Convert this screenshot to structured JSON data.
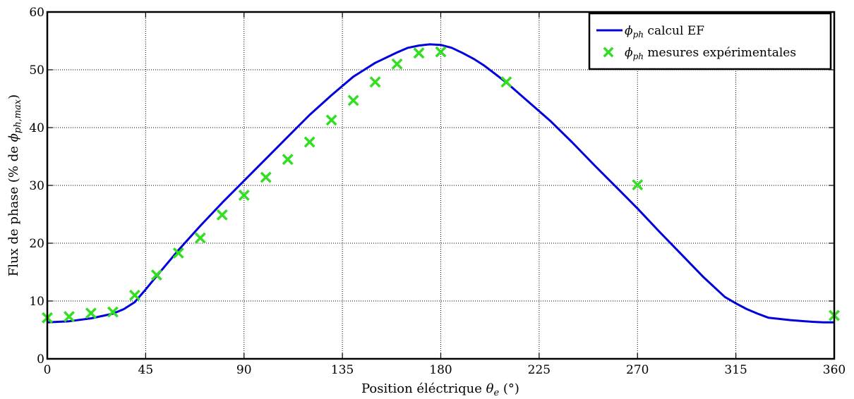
{
  "chart_data": {
    "type": "line",
    "xlabel_prefix": "Position éléctrique ",
    "xlabel_symbol": "θ",
    "xlabel_sub": "e",
    "xlabel_suffix": " (°)",
    "ylabel_prefix": "Flux de phase (% de ",
    "ylabel_symbol": "ϕ",
    "ylabel_sub": "ph,max",
    "ylabel_suffix": ")",
    "xlim": [
      0,
      360
    ],
    "ylim": [
      0,
      60
    ],
    "xticks": [
      0,
      45,
      90,
      135,
      180,
      225,
      270,
      315,
      360
    ],
    "yticks": [
      0,
      10,
      20,
      30,
      40,
      50,
      60
    ],
    "grid": true,
    "legend_position": "top-right",
    "series": [
      {
        "name_symbol": "ϕ",
        "name_sub": "ph",
        "name_text": " calcul EF",
        "kind": "line",
        "color": "#0000dd",
        "x": [
          0,
          10,
          20,
          30,
          35,
          40,
          45,
          50,
          60,
          70,
          80,
          90,
          100,
          110,
          120,
          130,
          140,
          150,
          160,
          165,
          170,
          175,
          180,
          185,
          190,
          195,
          200,
          210,
          220,
          230,
          240,
          250,
          260,
          270,
          280,
          290,
          300,
          310,
          315,
          320,
          325,
          330,
          340,
          350,
          355,
          360
        ],
        "y": [
          6.3,
          6.5,
          7.0,
          7.8,
          8.6,
          9.8,
          12.0,
          14.3,
          18.8,
          23.0,
          27.0,
          30.8,
          34.6,
          38.4,
          42.2,
          45.6,
          48.8,
          51.2,
          53.0,
          53.8,
          54.2,
          54.4,
          54.3,
          53.8,
          52.9,
          51.9,
          50.7,
          47.8,
          44.5,
          41.2,
          37.5,
          33.6,
          29.8,
          26.0,
          22.0,
          18.1,
          14.2,
          10.7,
          9.6,
          8.6,
          7.8,
          7.1,
          6.7,
          6.4,
          6.3,
          6.3
        ]
      },
      {
        "name_symbol": "ϕ",
        "name_sub": "ph",
        "name_text": " mesures expérimentales",
        "kind": "scatter",
        "color": "#33dd22",
        "x": [
          0,
          10,
          20,
          30,
          40,
          50,
          60,
          70,
          80,
          90,
          100,
          110,
          120,
          130,
          140,
          150,
          160,
          170,
          180,
          210,
          270,
          360
        ],
        "y": [
          7.1,
          7.3,
          7.9,
          8.1,
          11.0,
          14.5,
          18.3,
          20.9,
          24.9,
          28.3,
          31.4,
          34.5,
          37.5,
          41.3,
          44.7,
          47.9,
          51.0,
          52.9,
          53.1,
          47.9,
          30.1,
          7.5
        ]
      }
    ]
  }
}
